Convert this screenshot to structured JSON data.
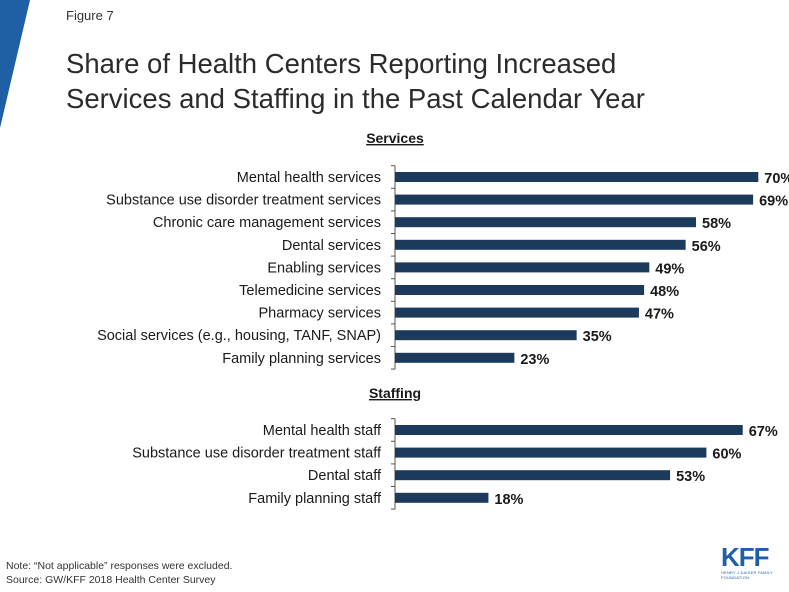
{
  "figure_label": "Figure 7",
  "title_line1": "Share of Health Centers Reporting Increased",
  "title_line2": "Services and Staffing in the Past Calendar Year",
  "colors": {
    "accent": "#1f5fa6",
    "bar": "#1b3a5c"
  },
  "chart_data": {
    "type": "bar",
    "orientation": "horizontal",
    "xlim": [
      0,
      100
    ],
    "groups": [
      {
        "title": "Services",
        "categories": [
          "Mental health services",
          "Substance use disorder treatment services",
          "Chronic care management services",
          "Dental services",
          "Enabling services",
          "Telemedicine services",
          "Pharmacy services",
          "Social services (e.g., housing, TANF, SNAP)",
          "Family planning services"
        ],
        "values": [
          70,
          69,
          58,
          56,
          49,
          48,
          47,
          35,
          23
        ],
        "labels": [
          "70%",
          "69%",
          "58%",
          "56%",
          "49%",
          "48%",
          "47%",
          "35%",
          "23%"
        ]
      },
      {
        "title": "Staffing",
        "categories": [
          "Mental health staff",
          "Substance use disorder treatment staff",
          "Dental staff",
          "Family planning staff"
        ],
        "values": [
          67,
          60,
          53,
          18
        ],
        "labels": [
          "67%",
          "60%",
          "53%",
          "18%"
        ]
      }
    ]
  },
  "note": "Note: “Not applicable” responses were excluded.",
  "source": "Source: GW/KFF 2018 Health Center Survey",
  "logo": {
    "text": "KFF",
    "subtext": "HENRY J KAISER FAMILY FOUNDATION"
  }
}
